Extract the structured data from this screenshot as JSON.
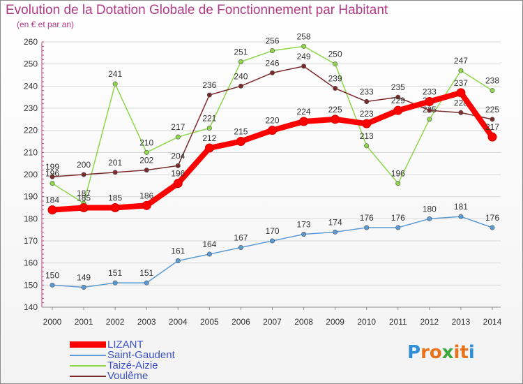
{
  "header": {
    "title": "Evolution de la Dotation Globale de Fonctionnement par Habitant",
    "subtitle": "(en € et par an)"
  },
  "logo": {
    "text": "Proxiti",
    "letters": [
      "P",
      "r",
      "o",
      "x",
      "i",
      "t",
      "i"
    ],
    "colors": [
      "#2f8fd8",
      "#e8731a",
      "#e8731a",
      "#3da63d",
      "#e8731a",
      "#e8731a",
      "#2f8fd8"
    ]
  },
  "chart_data": {
    "type": "line",
    "title": "Evolution de la Dotation Globale de Fonctionnement par Habitant",
    "subtitle": "(en € et par an)",
    "x": [
      "2000",
      "2001",
      "2002",
      "2003",
      "2004",
      "2005",
      "2006",
      "2007",
      "2008",
      "2009",
      "2010",
      "2011",
      "2012",
      "2013",
      "2014"
    ],
    "ylim": [
      140,
      260
    ],
    "yticks": [
      140,
      150,
      160,
      170,
      180,
      190,
      200,
      210,
      220,
      230,
      240,
      250,
      260
    ],
    "grid": true,
    "legend_position": "bottom-left",
    "series": [
      {
        "name": "LIZANT",
        "color": "#ff0000",
        "values": [
          184,
          185,
          185,
          186,
          196,
          212,
          215,
          220,
          224,
          225,
          223,
          229,
          233,
          237,
          217
        ]
      },
      {
        "name": "Saint-Gaudent",
        "color": "#5b9bd5",
        "values": [
          150,
          149,
          151,
          151,
          161,
          164,
          167,
          170,
          173,
          174,
          176,
          176,
          180,
          181,
          176
        ]
      },
      {
        "name": "Taizé-Aizie",
        "color": "#8fd64a",
        "values": [
          196,
          187,
          241,
          210,
          217,
          221,
          251,
          256,
          258,
          250,
          213,
          196,
          225,
          247,
          238
        ]
      },
      {
        "name": "Voulême",
        "color": "#7a2a2a",
        "values": [
          199,
          200,
          201,
          202,
          204,
          236,
          240,
          246,
          249,
          239,
          233,
          235,
          229,
          228,
          225
        ]
      }
    ]
  }
}
